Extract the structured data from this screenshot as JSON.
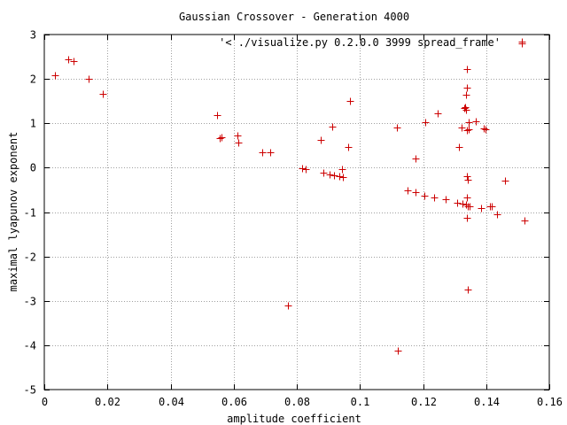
{
  "chart_data": {
    "type": "scatter",
    "title": "Gaussian Crossover - Generation 4000",
    "xlabel": "amplitude coefficient",
    "ylabel": "maximal lyapunov exponent",
    "xlim": [
      0,
      0.16
    ],
    "ylim": [
      -5,
      3
    ],
    "x_ticks": [
      "0",
      "0.02",
      "0.04",
      "0.06",
      "0.08",
      "0.1",
      "0.12",
      "0.14",
      "0.16"
    ],
    "y_ticks": [
      "3",
      "2",
      "1",
      "0",
      "-1",
      "-2",
      "-3",
      "-4",
      "-5"
    ],
    "grid": true,
    "legend_position": "top-right",
    "series": [
      {
        "name": "'< ./visualize.py 0.2.0.0 3999 spread_frame'",
        "color": "#cc0000",
        "marker": "plus",
        "points": [
          [
            0.0035,
            2.08
          ],
          [
            0.0075,
            2.45
          ],
          [
            0.0093,
            2.41
          ],
          [
            0.0141,
            2.0
          ],
          [
            0.0185,
            1.67
          ],
          [
            0.0548,
            1.19
          ],
          [
            0.0556,
            0.67
          ],
          [
            0.0562,
            0.68
          ],
          [
            0.0613,
            0.72
          ],
          [
            0.0616,
            0.56
          ],
          [
            0.0691,
            0.34
          ],
          [
            0.0716,
            0.34
          ],
          [
            0.0817,
            -0.02
          ],
          [
            0.0827,
            -0.04
          ],
          [
            0.0876,
            0.62
          ],
          [
            0.0884,
            -0.12
          ],
          [
            0.0903,
            -0.15
          ],
          [
            0.0911,
            0.92
          ],
          [
            0.0919,
            -0.17
          ],
          [
            0.0934,
            -0.2
          ],
          [
            0.0945,
            -0.22
          ],
          [
            0.0943,
            -0.04
          ],
          [
            0.0963,
            0.46
          ],
          [
            0.0968,
            1.51
          ],
          [
            0.0772,
            -3.1
          ],
          [
            0.1118,
            0.91
          ],
          [
            0.1119,
            -4.13
          ],
          [
            0.1152,
            -0.52
          ],
          [
            0.1175,
            -0.56
          ],
          [
            0.1175,
            0.2
          ],
          [
            0.1206,
            1.03
          ],
          [
            0.1204,
            -0.63
          ],
          [
            0.1234,
            -0.67
          ],
          [
            0.1245,
            1.23
          ],
          [
            0.1271,
            -0.72
          ],
          [
            0.1308,
            -0.79
          ],
          [
            0.1314,
            0.46
          ],
          [
            0.1326,
            -0.82
          ],
          [
            0.1323,
            0.9
          ],
          [
            0.1331,
            1.34
          ],
          [
            0.1336,
            -0.84
          ],
          [
            0.1334,
            1.36
          ],
          [
            0.1335,
            1.3
          ],
          [
            0.1336,
            1.65
          ],
          [
            0.1338,
            1.8
          ],
          [
            0.1339,
            2.22
          ],
          [
            0.134,
            0.85
          ],
          [
            0.134,
            -0.2
          ],
          [
            0.1341,
            -0.27
          ],
          [
            0.134,
            -0.68
          ],
          [
            0.1342,
            -0.88
          ],
          [
            0.1339,
            -1.12
          ],
          [
            0.1342,
            -2.74
          ],
          [
            0.1345,
            0.86
          ],
          [
            0.1344,
            1.02
          ],
          [
            0.1348,
            -0.87
          ],
          [
            0.1368,
            1.04
          ],
          [
            0.1385,
            -0.91
          ],
          [
            0.1392,
            0.89
          ],
          [
            0.1398,
            0.87
          ],
          [
            0.1412,
            -0.88
          ],
          [
            0.1418,
            -0.88
          ],
          [
            0.1433,
            -1.04
          ],
          [
            0.1461,
            -0.3
          ],
          [
            0.1512,
            2.81
          ],
          [
            0.1521,
            -1.19
          ]
        ]
      }
    ]
  }
}
